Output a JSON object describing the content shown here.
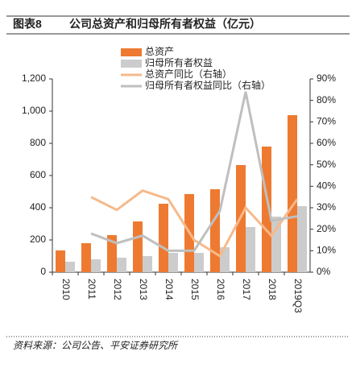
{
  "chart_data": {
    "type": "bar",
    "figure_label": "图表8",
    "title": "公司总资产和归母所有者权益（亿元）",
    "source": "资料来源：公司公告、平安证券研究所",
    "categories": [
      "2010",
      "2011",
      "2012",
      "2013",
      "2014",
      "2015",
      "2016",
      "2017",
      "2018",
      "2019Q3"
    ],
    "series": [
      {
        "name": "总资产",
        "type": "bar",
        "color": "#ee7a31",
        "values": [
          135,
          180,
          230,
          315,
          425,
          485,
          515,
          665,
          780,
          975
        ]
      },
      {
        "name": "归母所有者权益",
        "type": "bar",
        "color": "#cccccc",
        "values": [
          65,
          80,
          90,
          100,
          120,
          120,
          155,
          280,
          345,
          410
        ]
      },
      {
        "name": "总资产同比（右轴）",
        "type": "line",
        "axis": "y2",
        "color": "#f6b98a",
        "values": [
          null,
          35,
          29,
          38,
          34,
          15,
          7.5,
          30,
          17,
          34
        ]
      },
      {
        "name": "归母所有者权益同比（右轴）",
        "type": "line",
        "axis": "y2",
        "color": "#bfbfbf",
        "values": [
          null,
          18,
          13.5,
          17,
          10,
          10,
          28.5,
          84,
          24,
          26
        ]
      }
    ],
    "ylim": [
      0,
      1200
    ],
    "yticks": [
      0,
      200,
      400,
      600,
      800,
      {
        "value": 1000,
        "label": "1,000"
      },
      {
        "value": 1200,
        "label": "1,200"
      }
    ],
    "y2lim": [
      0,
      90
    ],
    "y2ticks": [
      {
        "value": 0,
        "label": "0%"
      },
      {
        "value": 10,
        "label": "10%"
      },
      {
        "value": 20,
        "label": "20%"
      },
      {
        "value": 30,
        "label": "30%"
      },
      {
        "value": 40,
        "label": "40%"
      },
      {
        "value": 50,
        "label": "50%"
      },
      {
        "value": 60,
        "label": "60%"
      },
      {
        "value": 70,
        "label": "70%"
      },
      {
        "value": 80,
        "label": "80%"
      },
      {
        "value": 90,
        "label": "90%"
      }
    ]
  }
}
